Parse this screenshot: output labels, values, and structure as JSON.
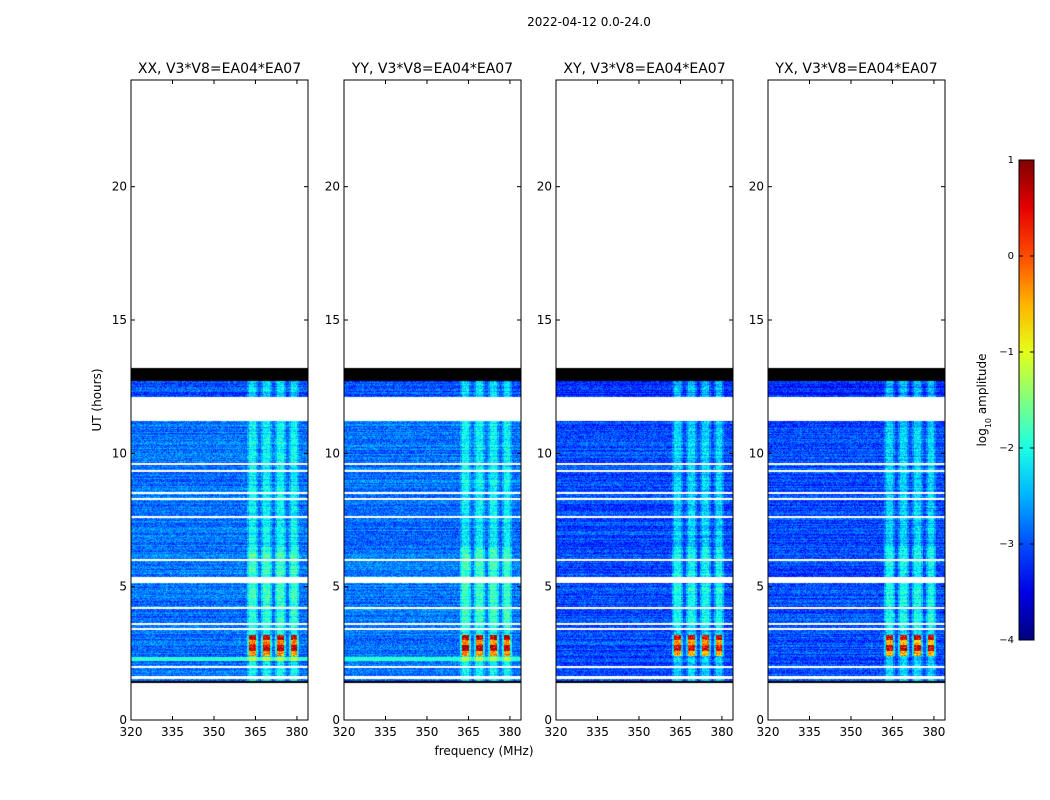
{
  "suptitle": "2022-04-12 0.0-24.0",
  "xlabel": "frequency (MHz)",
  "ylabel": "UT (hours)",
  "colorbar": {
    "label_prefix": "log",
    "label_sub": "10",
    "label_suffix": " amplitude",
    "range": [
      -4,
      1
    ],
    "ticks": [
      "1",
      "0",
      "−1",
      "−2",
      "−3",
      "−4"
    ],
    "tick_values": [
      1,
      0,
      -1,
      -2,
      -3,
      -4
    ],
    "colormap": "jet"
  },
  "chart_data": {
    "type": "heatmap",
    "xlim": [
      320,
      384
    ],
    "ylim": [
      0,
      24
    ],
    "x_ticks": [
      "320",
      "335",
      "350",
      "365",
      "380"
    ],
    "x_tick_values": [
      320,
      335,
      350,
      365,
      380
    ],
    "y_ticks": [
      "0",
      "5",
      "10",
      "15",
      "20"
    ],
    "y_tick_values": [
      0,
      5,
      10,
      15,
      20
    ],
    "data_time_range": [
      1.4,
      13.2
    ],
    "black_bands": [
      [
        12.7,
        13.2
      ],
      [
        1.4,
        1.45
      ]
    ],
    "white_gaps": [
      [
        11.2,
        12.1
      ],
      [
        1.55,
        1.65
      ]
    ],
    "rfi_channels_mhz": [
      364,
      369,
      374,
      379
    ],
    "panels": [
      {
        "title": "XX, V3*V8=EA04*EA07"
      },
      {
        "title": "YY, V3*V8=EA04*EA07"
      },
      {
        "title": "XY, V3*V8=EA04*EA07"
      },
      {
        "title": "YX, V3*V8=EA04*EA07"
      }
    ]
  }
}
